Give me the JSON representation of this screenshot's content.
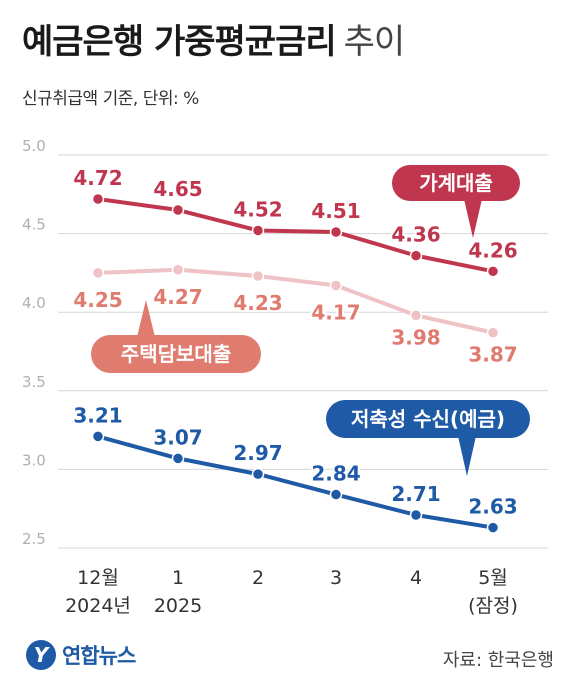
{
  "header": {
    "title": "예금은행 가중평균금리",
    "title_suffix": "추이",
    "subtitle": "신규취급액 기준, 단위: %"
  },
  "footer": {
    "brand_logo": "Y",
    "brand_name": "연합뉴스",
    "source": "자료: 한국은행"
  },
  "chart_data": {
    "type": "line",
    "categories": [
      [
        "12월",
        "2024년"
      ],
      [
        "1",
        "2025"
      ],
      [
        "2",
        ""
      ],
      [
        "3",
        ""
      ],
      [
        "4",
        ""
      ],
      [
        "5월",
        "(잠정)"
      ]
    ],
    "ylim": [
      2.5,
      5.0
    ],
    "yticks": [
      "5.0",
      "4.5",
      "4.0",
      "3.5",
      "3.0",
      "2.5"
    ],
    "grid": true,
    "series": [
      {
        "name": "가계대출",
        "values": [
          4.72,
          4.65,
          4.52,
          4.51,
          4.36,
          4.26
        ],
        "color": "#c0364f",
        "label_color": "#c0364f"
      },
      {
        "name": "주택담보대출",
        "values": [
          4.25,
          4.27,
          4.23,
          4.17,
          3.98,
          3.87
        ],
        "color": "#efc2c6",
        "label_color": "#e07b70"
      },
      {
        "name": "저축성 수신(예금)",
        "values": [
          3.21,
          3.07,
          2.97,
          2.84,
          2.71,
          2.63
        ],
        "color": "#1f5aa6",
        "label_color": "#1f5aa6"
      }
    ]
  }
}
